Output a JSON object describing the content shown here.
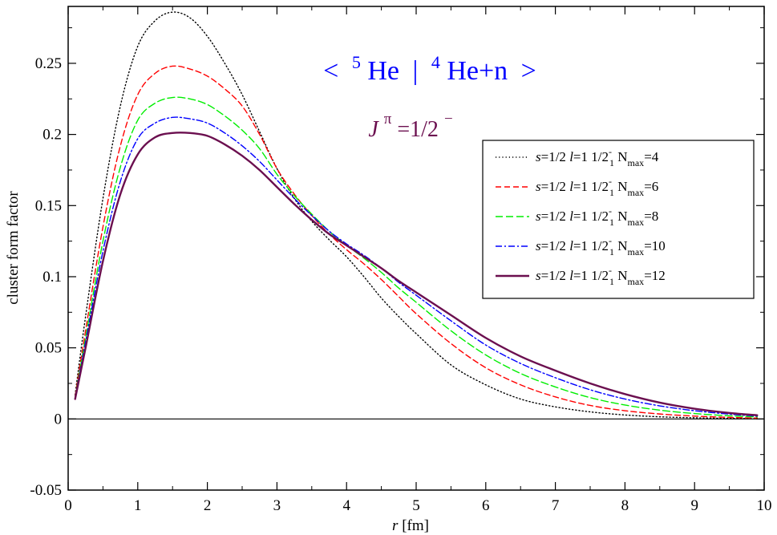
{
  "chart_data": {
    "type": "line",
    "title": {
      "open": "<",
      "mass_a": "5",
      "nucleus_a": "He",
      "separator": "|",
      "mass_b": "4",
      "nucleus_b": "He+n",
      "close": ">",
      "color": "#0000ff"
    },
    "subtitle": {
      "symbol": "J",
      "sup": "π",
      "value": "=1/2",
      "value_sup": "−",
      "color": "#6b0f4f"
    },
    "xlabel": {
      "var": "r",
      "unit": " [fm]"
    },
    "ylabel": "cluster form factor",
    "xlim": [
      0,
      10
    ],
    "ylim": [
      -0.05,
      0.29
    ],
    "x_ticks": [
      0,
      1,
      2,
      3,
      4,
      5,
      6,
      7,
      8,
      9,
      10
    ],
    "x_tick_labels": [
      "0",
      "1",
      "2",
      "3",
      "4",
      "5",
      "6",
      "7",
      "8",
      "9",
      "10"
    ],
    "y_ticks": [
      -0.05,
      0,
      0.05,
      0.1,
      0.15,
      0.2,
      0.25
    ],
    "y_tick_labels": [
      "-0.05",
      "0",
      "0.05",
      "0.1",
      "0.15",
      "0.2",
      "0.25"
    ],
    "zero_line": true,
    "grid": false,
    "legend_position": "right",
    "x": [
      0.1,
      0.25,
      0.5,
      0.75,
      1.0,
      1.25,
      1.5,
      1.75,
      2.0,
      2.25,
      2.5,
      2.75,
      3.0,
      3.25,
      3.5,
      3.75,
      4.0,
      4.25,
      4.5,
      4.75,
      5.0,
      5.5,
      6.0,
      6.5,
      7.0,
      7.5,
      8.0,
      8.5,
      9.0,
      9.5,
      9.9
    ],
    "series": [
      {
        "name": "s=1/2 l=1 1/2-1 Nmax=4",
        "legend": {
          "s": "s",
          "s_val": "=1/2 ",
          "l": "l",
          "l_val": "=1  1/2",
          "sup": "-",
          "sub": "1",
          "n_label": "  N",
          "n_sub": "max",
          "n_val": "=4"
        },
        "color": "#000000",
        "dash": "1.2 3",
        "width": 1.4,
        "values": [
          0.017,
          0.072,
          0.155,
          0.22,
          0.262,
          0.28,
          0.286,
          0.282,
          0.269,
          0.25,
          0.228,
          0.202,
          0.176,
          0.155,
          0.139,
          0.126,
          0.114,
          0.1,
          0.085,
          0.072,
          0.06,
          0.038,
          0.024,
          0.014,
          0.0085,
          0.005,
          0.0028,
          0.0015,
          0.0008,
          0.0004,
          0.0002
        ]
      },
      {
        "name": "s=1/2 l=1 1/2-1 Nmax=6",
        "legend": {
          "s": "s",
          "s_val": "=1/2 ",
          "l": "l",
          "l_val": "=1  1/2",
          "sup": "-",
          "sub": "1",
          "n_label": "  N",
          "n_sub": "max",
          "n_val": "=6"
        },
        "color": "#ff0000",
        "dash": "7 4",
        "width": 1.4,
        "values": [
          0.016,
          0.062,
          0.135,
          0.192,
          0.228,
          0.243,
          0.248,
          0.246,
          0.241,
          0.232,
          0.22,
          0.2,
          0.176,
          0.158,
          0.143,
          0.13,
          0.119,
          0.109,
          0.098,
          0.086,
          0.074,
          0.053,
          0.036,
          0.024,
          0.0155,
          0.0095,
          0.0058,
          0.0035,
          0.002,
          0.0011,
          0.0006
        ]
      },
      {
        "name": "s=1/2 l=1 1/2-1 Nmax=8",
        "legend": {
          "s": "s",
          "s_val": "=1/2 ",
          "l": "l",
          "l_val": "=1  1/2",
          "sup": "-",
          "sub": "1",
          "n_label": "  N",
          "n_sub": "max",
          "n_val": "=8"
        },
        "color": "#00ee00",
        "dash": "9 4",
        "width": 1.4,
        "values": [
          0.015,
          0.057,
          0.125,
          0.177,
          0.21,
          0.222,
          0.226,
          0.225,
          0.221,
          0.213,
          0.203,
          0.19,
          0.172,
          0.157,
          0.144,
          0.132,
          0.122,
          0.113,
          0.103,
          0.092,
          0.082,
          0.062,
          0.045,
          0.032,
          0.0225,
          0.015,
          0.0098,
          0.0062,
          0.0038,
          0.0022,
          0.0014
        ]
      },
      {
        "name": "s=1/2 l=1 1/2-1 Nmax=10",
        "legend": {
          "s": "s",
          "s_val": "=1/2 ",
          "l": "l",
          "l_val": "=1  1/2",
          "sup": "-",
          "sub": "1",
          "n_label": "  N",
          "n_sub": "max",
          "n_val": "=10"
        },
        "color": "#0000ff",
        "dash": "8 3 2 3",
        "width": 1.4,
        "values": [
          0.015,
          0.054,
          0.118,
          0.167,
          0.197,
          0.208,
          0.212,
          0.211,
          0.208,
          0.201,
          0.192,
          0.181,
          0.168,
          0.155,
          0.143,
          0.132,
          0.123,
          0.115,
          0.106,
          0.096,
          0.087,
          0.069,
          0.052,
          0.039,
          0.029,
          0.0205,
          0.014,
          0.0092,
          0.0058,
          0.0034,
          0.002
        ]
      },
      {
        "name": "s=1/2 l=1 1/2-1 Nmax=12",
        "legend": {
          "s": "s",
          "s_val": "=1/2 ",
          "l": "l",
          "l_val": "=1  1/2",
          "sup": "-",
          "sub": "1",
          "n_label": "  N",
          "n_sub": "max",
          "n_val": "=12"
        },
        "color": "#6b0f4f",
        "dash": "",
        "width": 2.4,
        "values": [
          0.014,
          0.05,
          0.111,
          0.158,
          0.186,
          0.198,
          0.201,
          0.201,
          0.199,
          0.193,
          0.185,
          0.175,
          0.163,
          0.151,
          0.14,
          0.13,
          0.122,
          0.114,
          0.106,
          0.097,
          0.089,
          0.073,
          0.057,
          0.044,
          0.034,
          0.025,
          0.0175,
          0.0115,
          0.0072,
          0.0042,
          0.0026
        ]
      }
    ]
  }
}
